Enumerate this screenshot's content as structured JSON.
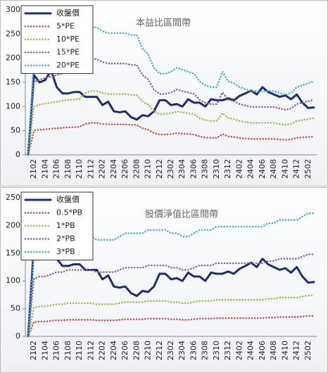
{
  "chart_data": [
    {
      "type": "line",
      "title": "本益比區間帶",
      "categories": [
        null,
        "2102",
        null,
        "2104",
        null,
        "2106",
        null,
        "2108",
        null,
        "2110",
        null,
        "2112",
        null,
        "2202",
        null,
        "2204",
        null,
        "2206",
        null,
        "2208",
        null,
        "2210",
        null,
        "2212",
        null,
        "2302",
        null,
        "2304",
        null,
        "2306",
        null,
        "2308",
        null,
        "2310",
        null,
        "2312",
        null,
        "2402",
        null,
        "2404",
        null,
        "2406",
        null,
        "2408",
        null,
        "2410",
        null,
        "2412",
        null,
        "2502",
        null
      ],
      "ylim": [
        0,
        300
      ],
      "yticks": [
        0,
        50,
        100,
        150,
        200,
        250,
        300
      ],
      "series": [
        {
          "name": "收盤價",
          "color": "#1f2d6e",
          "values": [
            0,
            165,
            150,
            155,
            175,
            140,
            127,
            127,
            130,
            130,
            120,
            120,
            120,
            103,
            110,
            90,
            88,
            90,
            78,
            73,
            82,
            80,
            90,
            113,
            113,
            103,
            105,
            100,
            115,
            108,
            108,
            100,
            115,
            113,
            113,
            117,
            113,
            122,
            127,
            133,
            125,
            140,
            130,
            125,
            120,
            123,
            115,
            125,
            108,
            97,
            98
          ]
        },
        {
          "name": "5*PE",
          "color": "#c0504d",
          "values": [
            0,
            50,
            52,
            53,
            54,
            55,
            56,
            57,
            57,
            58,
            64,
            66,
            66,
            64,
            63,
            63,
            63,
            63,
            62,
            62,
            55,
            52,
            45,
            42,
            42,
            43,
            45,
            44,
            43,
            42,
            38,
            36,
            35,
            35,
            43,
            38,
            37,
            35,
            34,
            33,
            33,
            33,
            33,
            33,
            32,
            31,
            32,
            35,
            36,
            37,
            38
          ]
        },
        {
          "name": "10*PE",
          "color": "#9bbb59",
          "values": [
            0,
            100,
            104,
            106,
            108,
            110,
            112,
            114,
            114,
            116,
            128,
            132,
            132,
            128,
            126,
            126,
            126,
            126,
            124,
            124,
            110,
            104,
            90,
            84,
            84,
            86,
            90,
            88,
            86,
            84,
            76,
            72,
            70,
            70,
            86,
            76,
            74,
            70,
            68,
            66,
            66,
            66,
            66,
            66,
            64,
            62,
            64,
            70,
            72,
            74,
            76
          ]
        },
        {
          "name": "15*PE",
          "color": "#8064a2",
          "values": [
            0,
            150,
            156,
            159,
            162,
            165,
            168,
            171,
            171,
            174,
            192,
            198,
            198,
            192,
            189,
            189,
            189,
            189,
            186,
            186,
            165,
            156,
            135,
            126,
            126,
            129,
            135,
            132,
            129,
            126,
            114,
            108,
            105,
            105,
            129,
            114,
            111,
            105,
            102,
            99,
            99,
            99,
            99,
            99,
            96,
            93,
            96,
            105,
            108,
            111,
            114
          ]
        },
        {
          "name": "20*PE",
          "color": "#4bacc6",
          "values": [
            0,
            200,
            208,
            212,
            216,
            220,
            224,
            228,
            228,
            232,
            256,
            264,
            264,
            256,
            252,
            252,
            252,
            252,
            248,
            248,
            220,
            208,
            180,
            168,
            168,
            172,
            180,
            176,
            172,
            168,
            152,
            144,
            140,
            140,
            172,
            152,
            148,
            140,
            136,
            132,
            132,
            132,
            132,
            132,
            128,
            124,
            128,
            140,
            144,
            148,
            152
          ]
        }
      ]
    },
    {
      "type": "line",
      "title": "股價淨值比區間帶",
      "categories": [
        null,
        "2102",
        null,
        "2104",
        null,
        "2106",
        null,
        "2108",
        null,
        "2110",
        null,
        "2112",
        null,
        "2202",
        null,
        "2204",
        null,
        "2206",
        null,
        "2208",
        null,
        "2210",
        null,
        "2212",
        null,
        "2302",
        null,
        "2304",
        null,
        "2306",
        null,
        "2308",
        null,
        "2310",
        null,
        "2312",
        null,
        "2402",
        null,
        "2404",
        null,
        "2406",
        null,
        "2408",
        null,
        "2410",
        null,
        "2412",
        null,
        "2502",
        null
      ],
      "ylim": [
        0,
        250
      ],
      "yticks": [
        0,
        50,
        100,
        150,
        200,
        250
      ],
      "series": [
        {
          "name": "收盤價",
          "color": "#1f2d6e",
          "values": [
            0,
            165,
            150,
            155,
            175,
            140,
            127,
            127,
            130,
            130,
            120,
            120,
            120,
            103,
            110,
            90,
            88,
            90,
            78,
            73,
            82,
            80,
            90,
            113,
            113,
            103,
            105,
            100,
            115,
            108,
            108,
            100,
            115,
            113,
            113,
            117,
            113,
            122,
            127,
            133,
            125,
            140,
            130,
            125,
            120,
            123,
            115,
            125,
            108,
            97,
            98
          ]
        },
        {
          "name": "0.5*PB",
          "color": "#c0504d",
          "values": [
            0,
            26,
            27,
            27,
            28,
            29,
            29,
            30,
            30,
            30,
            30,
            30,
            29,
            29,
            29,
            29,
            30,
            31,
            31,
            31,
            31,
            32,
            32,
            32,
            32,
            31,
            31,
            30,
            30,
            31,
            32,
            32,
            32,
            33,
            33,
            33,
            33,
            33,
            33,
            33,
            33,
            33,
            34,
            34,
            35,
            35,
            35,
            35,
            36,
            37,
            37
          ]
        },
        {
          "name": "1*PB",
          "color": "#9bbb59",
          "values": [
            0,
            52,
            54,
            54,
            56,
            58,
            58,
            60,
            60,
            60,
            60,
            60,
            58,
            58,
            58,
            58,
            60,
            62,
            62,
            62,
            62,
            64,
            64,
            64,
            64,
            62,
            62,
            60,
            60,
            62,
            64,
            64,
            64,
            66,
            66,
            66,
            66,
            66,
            66,
            66,
            66,
            66,
            68,
            68,
            70,
            70,
            70,
            70,
            72,
            74,
            74
          ]
        },
        {
          "name": "2*PB",
          "color": "#8064a2",
          "values": [
            0,
            104,
            108,
            108,
            112,
            116,
            116,
            120,
            120,
            120,
            120,
            120,
            116,
            116,
            116,
            116,
            120,
            124,
            124,
            124,
            124,
            128,
            128,
            128,
            128,
            124,
            124,
            120,
            120,
            124,
            128,
            128,
            128,
            132,
            132,
            132,
            132,
            132,
            132,
            132,
            132,
            132,
            136,
            136,
            140,
            140,
            140,
            140,
            144,
            148,
            148
          ]
        },
        {
          "name": "3*PB",
          "color": "#4bacc6",
          "values": [
            0,
            156,
            162,
            162,
            168,
            174,
            174,
            180,
            180,
            180,
            180,
            180,
            174,
            174,
            174,
            174,
            180,
            186,
            186,
            186,
            186,
            192,
            192,
            192,
            192,
            186,
            186,
            180,
            180,
            186,
            192,
            192,
            192,
            198,
            198,
            198,
            198,
            198,
            198,
            198,
            198,
            198,
            204,
            204,
            210,
            210,
            210,
            210,
            216,
            222,
            222
          ]
        }
      ]
    }
  ]
}
